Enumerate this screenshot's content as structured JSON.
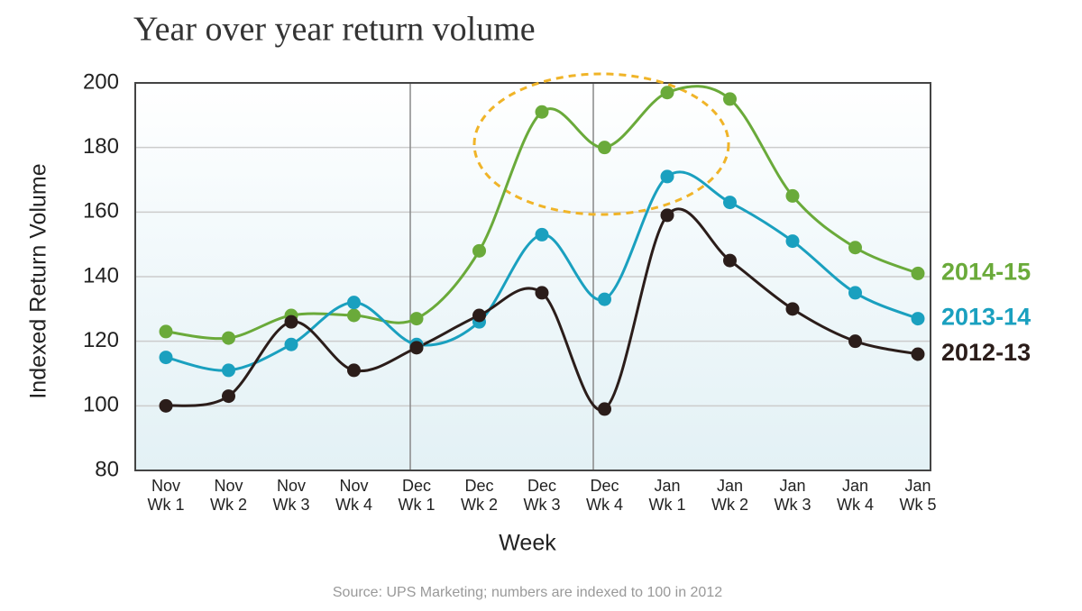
{
  "chart_data": {
    "type": "line",
    "title": "Year over year return volume",
    "x_label": "Week",
    "y_label": "Indexed Return Volume",
    "source": "Source: UPS Marketing; numbers are indexed to 100 in 2012",
    "categories": [
      [
        "Nov",
        "Wk 1"
      ],
      [
        "Nov",
        "Wk 2"
      ],
      [
        "Nov",
        "Wk 3"
      ],
      [
        "Nov",
        "Wk 4"
      ],
      [
        "Dec",
        "Wk 1"
      ],
      [
        "Dec",
        "Wk 2"
      ],
      [
        "Dec",
        "Wk 3"
      ],
      [
        "Dec",
        "Wk 4"
      ],
      [
        "Jan",
        "Wk 1"
      ],
      [
        "Jan",
        "Wk 2"
      ],
      [
        "Jan",
        "Wk 3"
      ],
      [
        "Jan",
        "Wk 4"
      ],
      [
        "Jan",
        "Wk 5"
      ]
    ],
    "series": [
      {
        "name": "2014-15",
        "color": "#6aaa3a",
        "values": [
          123,
          121,
          128,
          128,
          127,
          148,
          191,
          180,
          197,
          195,
          165,
          149,
          141
        ]
      },
      {
        "name": "2013-14",
        "color": "#1aa0bf",
        "values": [
          115,
          111,
          119,
          132,
          119,
          126,
          153,
          133,
          171,
          163,
          151,
          135,
          127
        ]
      },
      {
        "name": "2012-13",
        "color": "#2b1d1a",
        "values": [
          100,
          103,
          126,
          111,
          118,
          128,
          135,
          99,
          159,
          145,
          130,
          120,
          116
        ]
      }
    ],
    "ylim": [
      80,
      200
    ],
    "yticks": [
      80,
      100,
      120,
      140,
      160,
      180,
      200
    ],
    "grid": true
  }
}
